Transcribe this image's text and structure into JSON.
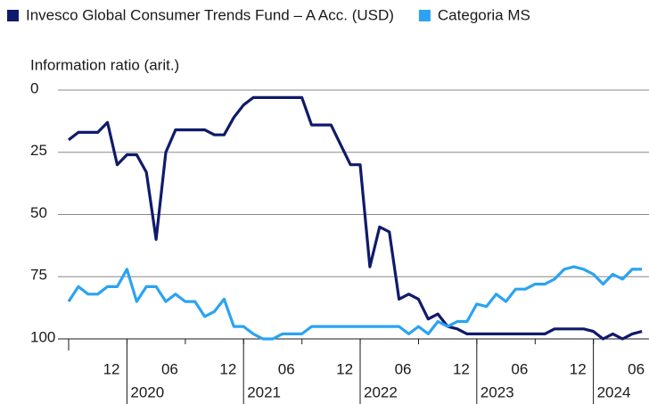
{
  "chart_data": {
    "type": "line",
    "y_label": "Information ratio (arit.)",
    "ylim": [
      0,
      100
    ],
    "y_inverted": true,
    "yticks": [
      0,
      25,
      50,
      75,
      100
    ],
    "grid": true,
    "x": [
      "2019-07",
      "2019-08",
      "2019-09",
      "2019-10",
      "2019-11",
      "2019-12",
      "2020-01",
      "2020-02",
      "2020-03",
      "2020-04",
      "2020-05",
      "2020-06",
      "2020-07",
      "2020-08",
      "2020-09",
      "2020-10",
      "2020-11",
      "2020-12",
      "2021-01",
      "2021-02",
      "2021-03",
      "2021-04",
      "2021-05",
      "2021-06",
      "2021-07",
      "2021-08",
      "2021-09",
      "2021-10",
      "2021-11",
      "2021-12",
      "2022-01",
      "2022-02",
      "2022-03",
      "2022-04",
      "2022-05",
      "2022-06",
      "2022-07",
      "2022-08",
      "2022-09",
      "2022-10",
      "2022-11",
      "2022-12",
      "2023-01",
      "2023-02",
      "2023-03",
      "2023-04",
      "2023-05",
      "2023-06",
      "2023-07",
      "2023-08",
      "2023-09",
      "2023-10",
      "2023-11",
      "2023-12",
      "2024-01",
      "2024-02",
      "2024-03",
      "2024-04",
      "2024-05",
      "2024-06"
    ],
    "xticks": [
      {
        "value": "2019-12",
        "label": "12"
      },
      {
        "value": "2020-06",
        "label": "06"
      },
      {
        "value": "2020-12",
        "label": "12"
      },
      {
        "value": "2021-06",
        "label": "06"
      },
      {
        "value": "2021-12",
        "label": "12"
      },
      {
        "value": "2022-06",
        "label": "06"
      },
      {
        "value": "2022-12",
        "label": "12"
      },
      {
        "value": "2023-06",
        "label": "06"
      },
      {
        "value": "2023-12",
        "label": "12"
      },
      {
        "value": "2024-06",
        "label": "06"
      }
    ],
    "xticks_years": [
      {
        "value": "2020-01",
        "label": "2020"
      },
      {
        "value": "2021-01",
        "label": "2021"
      },
      {
        "value": "2022-01",
        "label": "2022"
      },
      {
        "value": "2023-01",
        "label": "2023"
      },
      {
        "value": "2024-01",
        "label": "2024"
      }
    ],
    "series": [
      {
        "name": "Invesco Global Consumer Trends Fund – A Acc. (USD)",
        "color": "#101a6b",
        "values": [
          20,
          17,
          17,
          17,
          13,
          30,
          26,
          26,
          33,
          60,
          25,
          16,
          16,
          16,
          16,
          18,
          18,
          11,
          6,
          3,
          3,
          3,
          3,
          3,
          3,
          14,
          14,
          14,
          22,
          30,
          30,
          71,
          55,
          57,
          84,
          82,
          84,
          92,
          90,
          95,
          96,
          98,
          98,
          98,
          98,
          98,
          98,
          98,
          98,
          98,
          96,
          96,
          96,
          96,
          97,
          100,
          98,
          100,
          98,
          97
        ]
      },
      {
        "name": "Categoria MS",
        "color": "#2ba3f2",
        "values": [
          85,
          79,
          82,
          82,
          79,
          79,
          72,
          85,
          79,
          79,
          85,
          82,
          85,
          85,
          91,
          89,
          84,
          95,
          95,
          98,
          100,
          100,
          98,
          98,
          98,
          95,
          95,
          95,
          95,
          95,
          95,
          95,
          95,
          95,
          95,
          98,
          95,
          98,
          93,
          95,
          93,
          93,
          86,
          87,
          82,
          85,
          80,
          80,
          78,
          78,
          76,
          72,
          71,
          72,
          74,
          78,
          74,
          76,
          72,
          72
        ]
      }
    ]
  }
}
